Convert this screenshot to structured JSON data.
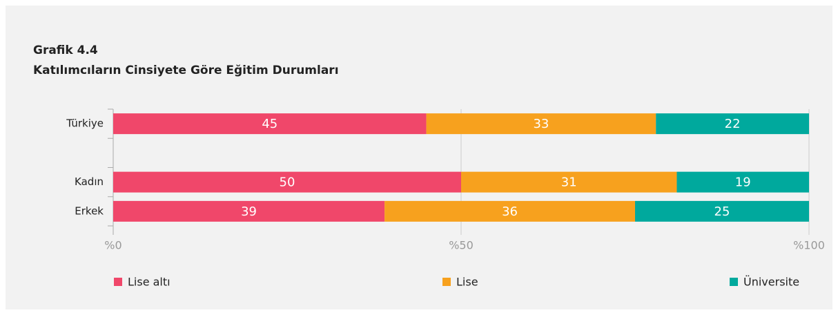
{
  "chart_data": {
    "type": "stacked-bar-horizontal",
    "title": "Grafik 4.4",
    "subtitle": "Katılımcıların Cinsiyete Göre Eğitim Durumları",
    "categories": [
      "Türkiye",
      null,
      "Kadın",
      "Erkek"
    ],
    "series": [
      {
        "name": "Lise altı",
        "color": "#f0476a",
        "values": [
          45,
          null,
          50,
          39
        ]
      },
      {
        "name": "Lise",
        "color": "#f7a11e",
        "values": [
          33,
          null,
          31,
          36
        ]
      },
      {
        "name": "Üniversite",
        "color": "#00a99d",
        "values": [
          22,
          null,
          19,
          25
        ]
      }
    ],
    "xlim": [
      0,
      100
    ],
    "xticks": [
      {
        "value": 0,
        "label": "%0"
      },
      {
        "value": 50,
        "label": "%50"
      },
      {
        "value": 100,
        "label": "%100"
      }
    ],
    "grid": true
  }
}
